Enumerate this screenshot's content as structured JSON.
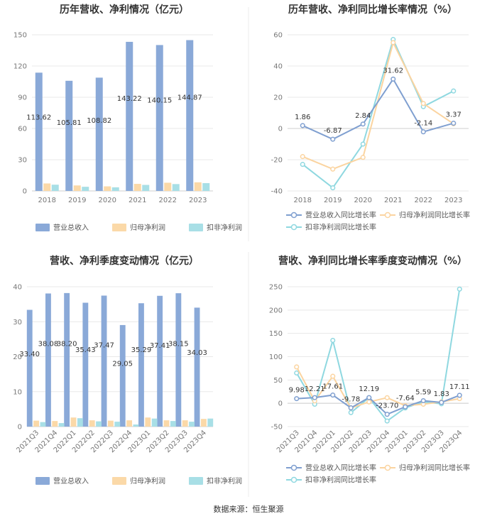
{
  "colors": {
    "revenue": "#8aa9d8",
    "net": "#fbd9a8",
    "deducted": "#a8dfe6",
    "grid": "#e8e8e8",
    "axis": "#cfcfcf"
  },
  "chart_data": [
    {
      "type": "bar",
      "title": "历年营收、净利情况（亿元）",
      "categories": [
        "2018",
        "2019",
        "2020",
        "2021",
        "2022",
        "2023"
      ],
      "ylim": [
        0,
        150
      ],
      "yticks": [
        "0",
        "30",
        "60",
        "90",
        "120",
        "150"
      ],
      "series": [
        {
          "name": "营业总收入",
          "values": [
            113.62,
            105.81,
            108.82,
            143.22,
            140.15,
            144.87
          ],
          "labels": [
            "113.62",
            "105.81",
            "108.82",
            "143.22",
            "140.15",
            "144.87"
          ]
        },
        {
          "name": "归母净利润",
          "values": [
            7.2,
            5.3,
            4.4,
            6.8,
            7.9,
            8.3
          ]
        },
        {
          "name": "扣非净利润",
          "values": [
            6.0,
            4.0,
            3.5,
            5.8,
            6.6,
            7.5
          ]
        }
      ]
    },
    {
      "type": "line",
      "title": "历年营收、净利同比增长率情况（%）",
      "categories": [
        "2018",
        "2019",
        "2020",
        "2021",
        "2022",
        "2023"
      ],
      "ylim": [
        -40,
        60
      ],
      "yticks": [
        "-40",
        "-20",
        "0",
        "20",
        "40",
        "60"
      ],
      "series": [
        {
          "name": "营业总收入同比增长率",
          "values": [
            1.86,
            -6.87,
            2.84,
            31.62,
            -2.14,
            3.37
          ],
          "labels": [
            "1.86",
            "-6.87",
            "2.84",
            "31.62",
            "-2.14",
            "3.37"
          ]
        },
        {
          "name": "归母净利润同比增长率",
          "values": [
            -18,
            -26,
            -18.5,
            55,
            16,
            3
          ]
        },
        {
          "name": "扣非净利润同比增长率",
          "values": [
            -23,
            -38,
            -10,
            57,
            14,
            24
          ]
        }
      ]
    },
    {
      "type": "bar",
      "title": "营收、净利季度变动情况（亿元）",
      "categories": [
        "2021Q3",
        "2021Q4",
        "2022Q1",
        "2022Q2",
        "2022Q3",
        "2022Q4",
        "2023Q1",
        "2023Q2",
        "2023Q3",
        "2023Q4"
      ],
      "ylim": [
        0,
        40
      ],
      "yticks": [
        "0",
        "10",
        "20",
        "30",
        "40"
      ],
      "series": [
        {
          "name": "营业总收入",
          "values": [
            33.4,
            38.08,
            38.2,
            35.43,
            37.47,
            29.05,
            35.29,
            37.41,
            38.15,
            34.03
          ],
          "labels": [
            "33.40",
            "38.08",
            "38.20",
            "35.43",
            "37.47",
            "29.05",
            "35.29",
            "37.41",
            "38.15",
            "34.03"
          ]
        },
        {
          "name": "归母净利润",
          "values": [
            1.7,
            1.6,
            2.6,
            1.8,
            1.7,
            1.8,
            2.6,
            1.8,
            1.8,
            2.2
          ]
        },
        {
          "name": "扣非净利润",
          "values": [
            1.3,
            1.0,
            2.4,
            1.5,
            1.4,
            0.6,
            2.3,
            1.6,
            1.4,
            2.3
          ]
        }
      ]
    },
    {
      "type": "line",
      "title": "营收、净利同比增长率季度变动情况（%）",
      "categories": [
        "2021Q3",
        "2021Q4",
        "2022Q1",
        "2022Q2",
        "2022Q3",
        "2022Q4",
        "2023Q1",
        "2023Q2",
        "2023Q3",
        "2023Q4"
      ],
      "ylim": [
        -50,
        250
      ],
      "yticks": [
        "-50",
        "0",
        "50",
        "100",
        "150",
        "200",
        "250"
      ],
      "series": [
        {
          "name": "营业总收入同比增长率",
          "values": [
            9.98,
            12.21,
            17.61,
            -9.78,
            12.19,
            -23.7,
            -7.64,
            5.59,
            1.83,
            17.11
          ],
          "labels": [
            "9.98",
            "12.21",
            "17.61",
            "-9.78",
            "12.19",
            "-23.70",
            "-7.64",
            "5.59",
            "1.83",
            "17.11"
          ]
        },
        {
          "name": "归母净利润同比增长率",
          "values": [
            78,
            5,
            58,
            -10,
            3,
            12,
            -5,
            -2,
            3,
            10
          ]
        },
        {
          "name": "扣非净利润同比增长率",
          "values": [
            65,
            -2,
            135,
            -20,
            12,
            -38,
            -10,
            3,
            -1,
            245
          ]
        }
      ]
    }
  ],
  "footer": {
    "source": "数据来源：恒生聚源"
  }
}
